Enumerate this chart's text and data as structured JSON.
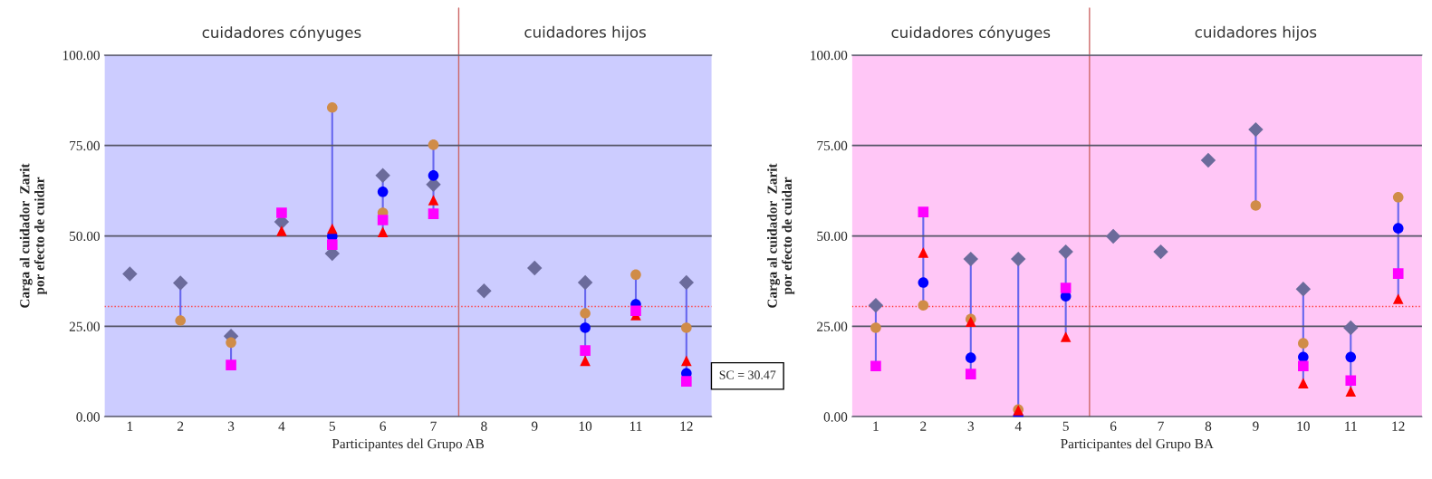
{
  "chart_data": [
    {
      "type": "scatter",
      "xlabel": "Participantes del Grupo AB",
      "ylabel": "Carga al cuidador  Zarit\npor efecto de cuidar",
      "x": [
        1,
        2,
        3,
        4,
        5,
        6,
        7,
        8,
        9,
        10,
        11,
        12
      ],
      "xlim": [
        0.5,
        12.5
      ],
      "xticks": [
        1,
        2,
        3,
        4,
        5,
        6,
        7,
        8,
        9,
        10,
        11,
        12
      ],
      "ylim": [
        0,
        100
      ],
      "yticks": [
        {
          "value": 0,
          "label": "0.00"
        },
        {
          "value": 25,
          "label": "25.00"
        },
        {
          "value": 50,
          "label": "50.00"
        },
        {
          "value": 75,
          "label": "75.00"
        },
        {
          "value": 100,
          "label": "100.00"
        }
      ],
      "grid": "y",
      "bands": [
        {
          "axis": "y",
          "from": 0,
          "to": 100,
          "color": "#ccccff"
        }
      ],
      "ref_lines": [
        {
          "axis": "y",
          "value": 30.47,
          "color": "#ff4040",
          "line_style": "dotted"
        },
        {
          "axis": "x",
          "value": 7.5,
          "color": "#cc6666",
          "line_style": "solid"
        }
      ],
      "annotations": [
        "cuidadores cónyuges",
        "cuidadores hijos"
      ],
      "series": [
        {
          "marker": "diamond",
          "color": "#6b6b9b",
          "values": [
            39.5,
            37.0,
            22.3,
            53.9,
            45.1,
            66.7,
            64.2,
            34.8,
            41.1,
            37.1,
            null,
            37.1
          ]
        },
        {
          "marker": "circle",
          "color": "#d08c48",
          "values": [
            null,
            26.6,
            20.5,
            null,
            85.5,
            56.4,
            75.2,
            null,
            null,
            28.6,
            39.3,
            24.6
          ]
        },
        {
          "marker": "circle",
          "color": "#0000ff",
          "values": [
            null,
            null,
            null,
            null,
            49.9,
            62.2,
            66.7,
            null,
            null,
            24.6,
            31.1,
            12.0
          ]
        },
        {
          "marker": "triangle",
          "color": "#ff0000",
          "values": [
            null,
            null,
            null,
            51.4,
            52.0,
            51.1,
            59.9,
            null,
            null,
            15.5,
            28.1,
            15.5
          ]
        },
        {
          "marker": "square",
          "color": "#ff00ff",
          "values": [
            null,
            null,
            14.3,
            56.4,
            47.6,
            54.4,
            56.1,
            null,
            null,
            18.3,
            29.3,
            9.8
          ]
        }
      ]
    },
    {
      "type": "scatter",
      "xlabel": "Participantes del Grupo BA",
      "ylabel": "Carga al cuidador  Zarit\npor efecto de cuidar",
      "x": [
        1,
        2,
        3,
        4,
        5,
        6,
        7,
        8,
        9,
        10,
        11,
        12
      ],
      "xlim": [
        0.5,
        12.5
      ],
      "xticks": [
        1,
        2,
        3,
        4,
        5,
        6,
        7,
        8,
        9,
        10,
        11,
        12
      ],
      "ylim": [
        0,
        100
      ],
      "yticks": [
        {
          "value": 0,
          "label": "0.00"
        },
        {
          "value": 25,
          "label": "25.00"
        },
        {
          "value": 50,
          "label": "50.00"
        },
        {
          "value": 75,
          "label": "75.00"
        },
        {
          "value": 100,
          "label": "100.00"
        }
      ],
      "grid": "y",
      "bands": [
        {
          "axis": "y",
          "from": 0,
          "to": 100,
          "color": "#ffc6f6"
        }
      ],
      "ref_lines": [
        {
          "axis": "y",
          "value": 30.47,
          "color": "#ff4040",
          "line_style": "dotted"
        },
        {
          "axis": "x",
          "value": 5.5,
          "color": "#cc6666",
          "line_style": "solid"
        }
      ],
      "annotations": [
        "cuidadores cónyuges",
        "cuidadores hijos",
        "SC = 30.47"
      ],
      "series": [
        {
          "marker": "diamond",
          "color": "#6b6b9b",
          "values": [
            30.8,
            null,
            43.6,
            43.6,
            45.6,
            49.9,
            45.6,
            70.9,
            79.4,
            35.3,
            24.6,
            null
          ]
        },
        {
          "marker": "circle",
          "color": "#d08c48",
          "values": [
            24.6,
            30.8,
            27.0,
            2.0,
            null,
            null,
            null,
            null,
            58.4,
            20.3,
            null,
            60.7
          ]
        },
        {
          "marker": "circle",
          "color": "#0000ff",
          "values": [
            null,
            37.1,
            16.3,
            0,
            33.3,
            null,
            null,
            null,
            null,
            16.5,
            16.5,
            52.1
          ]
        },
        {
          "marker": "triangle",
          "color": "#ff0000",
          "values": [
            null,
            45.4,
            26.3,
            1.8,
            22.1,
            null,
            null,
            null,
            null,
            9.3,
            7.0,
            32.6
          ]
        },
        {
          "marker": "square",
          "color": "#ff00ff",
          "values": [
            14.0,
            56.6,
            11.8,
            null,
            35.6,
            null,
            null,
            null,
            null,
            14.0,
            10.0,
            39.6
          ]
        }
      ]
    }
  ]
}
